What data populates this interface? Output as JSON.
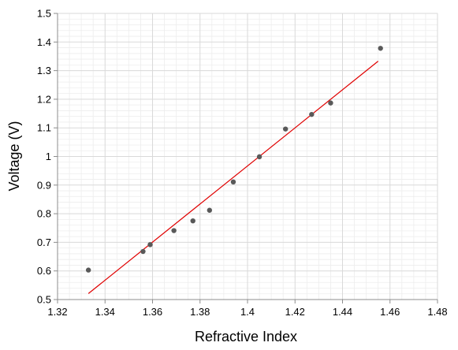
{
  "chart_data": {
    "type": "scatter",
    "title": "",
    "xlabel": "Refractive Index",
    "ylabel": "Voltage (V)",
    "xlim": [
      1.32,
      1.48
    ],
    "ylim": [
      0.5,
      1.5
    ],
    "x_ticks": [
      "1.32",
      "1.34",
      "1.36",
      "1.38",
      "1.4",
      "1.42",
      "1.44",
      "1.46",
      "1.48"
    ],
    "y_ticks": [
      "0.5",
      "0.6",
      "0.7",
      "0.8",
      "0.9",
      "1",
      "1.1",
      "1.2",
      "1.3",
      "1.4",
      "1.5"
    ],
    "grid": true,
    "legend": "none",
    "series": [
      {
        "points": [
          {
            "x": 1.333,
            "y": 0.603
          },
          {
            "x": 1.356,
            "y": 0.668
          },
          {
            "x": 1.359,
            "y": 0.692
          },
          {
            "x": 1.369,
            "y": 0.741
          },
          {
            "x": 1.377,
            "y": 0.775
          },
          {
            "x": 1.384,
            "y": 0.812
          },
          {
            "x": 1.394,
            "y": 0.911
          },
          {
            "x": 1.405,
            "y": 0.999
          },
          {
            "x": 1.416,
            "y": 1.096
          },
          {
            "x": 1.427,
            "y": 1.147
          },
          {
            "x": 1.435,
            "y": 1.187
          },
          {
            "x": 1.456,
            "y": 1.378
          }
        ],
        "color": "#595959"
      }
    ],
    "trendline": {
      "type": "linear",
      "from": {
        "x": 1.333,
        "y": 0.521
      },
      "to": {
        "x": 1.455,
        "y": 1.333
      },
      "color": "#e00000"
    },
    "colors": {
      "axis": "#8c8c8c",
      "major_grid": "#d9d9d9",
      "minor_grid": "#ededed"
    }
  }
}
